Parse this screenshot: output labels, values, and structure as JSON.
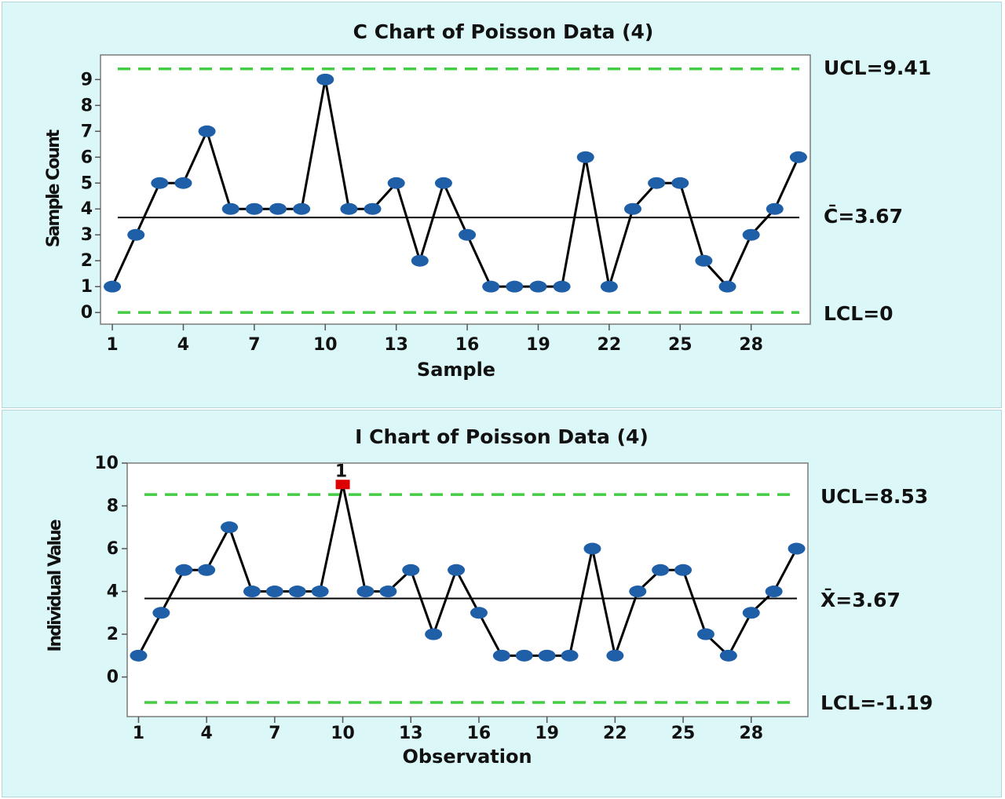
{
  "colors": {
    "panel_bg": "#dcf7f7",
    "plot_bg": "#ffffff",
    "point": "#1f5fa8",
    "line": "#000000",
    "limit_line": "#44cc44",
    "out_of_control": "#dd0000"
  },
  "chart_data": [
    {
      "type": "line",
      "title": "C Chart of Poisson Data (4)",
      "xlabel": "Sample",
      "ylabel": "Sample Count",
      "x": [
        1,
        2,
        3,
        4,
        5,
        6,
        7,
        8,
        9,
        10,
        11,
        12,
        13,
        14,
        15,
        16,
        17,
        18,
        19,
        20,
        21,
        22,
        23,
        24,
        25,
        26,
        27,
        28,
        29,
        30
      ],
      "values": [
        1,
        3,
        5,
        5,
        7,
        4,
        4,
        4,
        4,
        9,
        4,
        4,
        5,
        2,
        5,
        3,
        1,
        1,
        1,
        1,
        6,
        1,
        4,
        5,
        5,
        2,
        1,
        3,
        4,
        6
      ],
      "x_ticks": [
        1,
        4,
        7,
        10,
        13,
        16,
        19,
        22,
        25,
        28
      ],
      "y_ticks": [
        0,
        1,
        2,
        3,
        4,
        5,
        6,
        7,
        8,
        9
      ],
      "ylim": [
        -0.45,
        9.95
      ],
      "xlim": [
        0.5,
        30.5
      ],
      "ucl": 9.41,
      "center": 3.67,
      "lcl": 0,
      "ucl_label": "UCL=9.41",
      "center_label": "C̄=3.67",
      "lcl_label": "LCL=0",
      "flagged": []
    },
    {
      "type": "line",
      "title": "I Chart of Poisson Data (4)",
      "xlabel": "Observation",
      "ylabel": "Individual Value",
      "x": [
        1,
        2,
        3,
        4,
        5,
        6,
        7,
        8,
        9,
        10,
        11,
        12,
        13,
        14,
        15,
        16,
        17,
        18,
        19,
        20,
        21,
        22,
        23,
        24,
        25,
        26,
        27,
        28,
        29,
        30
      ],
      "values": [
        1,
        3,
        5,
        5,
        7,
        4,
        4,
        4,
        4,
        9,
        4,
        4,
        5,
        2,
        5,
        3,
        1,
        1,
        1,
        1,
        6,
        1,
        4,
        5,
        5,
        2,
        1,
        3,
        4,
        6
      ],
      "x_ticks": [
        1,
        4,
        7,
        10,
        13,
        16,
        19,
        22,
        25,
        28
      ],
      "y_ticks": [
        0,
        2,
        4,
        6,
        8,
        10
      ],
      "ylim": [
        -1.85,
        10
      ],
      "xlim": [
        0.5,
        30.5
      ],
      "ucl": 8.53,
      "center": 3.67,
      "lcl": -1.19,
      "ucl_label": "UCL=8.53",
      "center_label": "X̄=3.67",
      "lcl_label": "LCL=-1.19",
      "flagged": [
        {
          "x": 10,
          "label": "1"
        }
      ]
    }
  ]
}
